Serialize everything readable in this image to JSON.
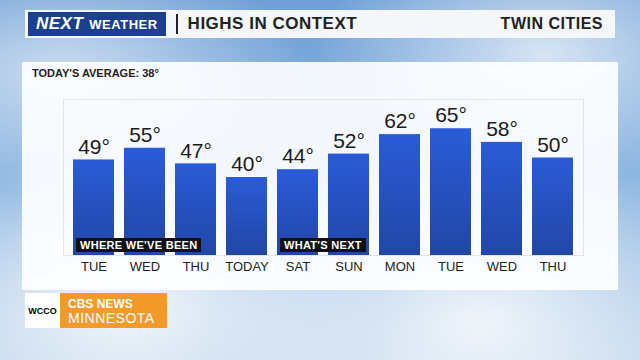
{
  "header": {
    "brand": [
      "NEXT",
      "WEATHER"
    ],
    "title": "HIGHS IN CONTEXT",
    "location": "TWIN CITIES"
  },
  "chart_data": {
    "type": "bar",
    "subtitle": "TODAY'S AVERAGE: 38°",
    "categories": [
      "TUE",
      "WED",
      "THU",
      "TODAY",
      "SAT",
      "SUN",
      "MON",
      "TUE",
      "WED",
      "THU"
    ],
    "values": [
      49,
      55,
      47,
      40,
      44,
      52,
      62,
      65,
      58,
      50
    ],
    "value_labels": [
      "49°",
      "55°",
      "47°",
      "40°",
      "44°",
      "52°",
      "62°",
      "65°",
      "58°",
      "50°"
    ],
    "color": "#2a5bd7",
    "ylim": [
      0,
      80
    ],
    "yticks": [],
    "tick_labels": "x",
    "data_labels": true,
    "grid": false,
    "annotations": [
      {
        "text": "WHERE WE'VE BEEN",
        "category_index": 0
      },
      {
        "text": "WHAT'S NEXT",
        "category_index": 4
      }
    ]
  },
  "footer": {
    "station": "WCCO",
    "network": "CBS NEWS",
    "region": "MINNESOTA"
  }
}
